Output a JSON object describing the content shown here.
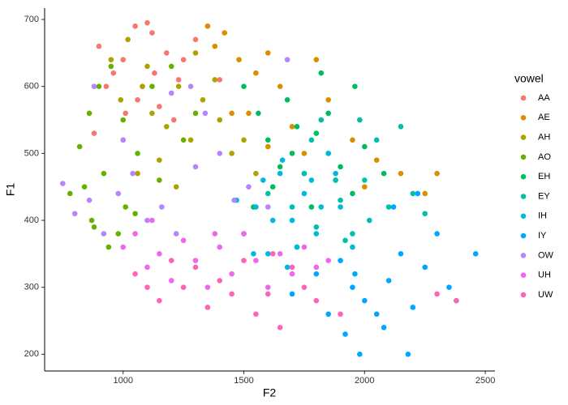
{
  "chart_data": {
    "type": "scatter",
    "x_label": "F2",
    "y_label": "F1",
    "legend_title": "vowel",
    "legend": "right",
    "xlim": [
      675,
      2540
    ],
    "ylim": [
      175,
      717
    ],
    "xticks": [
      1000,
      1500,
      2000,
      2500
    ],
    "yticks": [
      200,
      300,
      400,
      500,
      600,
      700
    ],
    "series": [
      {
        "name": "AA",
        "color": "#F8766D",
        "x": [
          1050,
          1100,
          1120,
          1000,
          960,
          900,
          1180,
          1230,
          1300,
          1080,
          1150,
          1010,
          1250,
          1350,
          930,
          1060,
          1210,
          880,
          1130,
          1400
        ],
        "values": [
          690,
          695,
          680,
          640,
          620,
          660,
          650,
          610,
          670,
          600,
          570,
          560,
          640,
          690,
          600,
          580,
          550,
          530,
          620,
          610
        ]
      },
      {
        "name": "AE",
        "color": "#DB8E00",
        "x": [
          1350,
          1420,
          1480,
          1550,
          1600,
          1650,
          1520,
          1700,
          1850,
          1950,
          2050,
          2150,
          2300,
          2250,
          1750,
          1600,
          1450,
          1380,
          2000,
          1800
        ],
        "values": [
          690,
          680,
          640,
          620,
          650,
          600,
          560,
          540,
          580,
          520,
          490,
          470,
          470,
          440,
          500,
          510,
          560,
          660,
          450,
          640
        ]
      },
      {
        "name": "AH",
        "color": "#AEA200",
        "x": [
          950,
          1020,
          1080,
          1120,
          1180,
          1230,
          1280,
          1330,
          1400,
          1450,
          1000,
          1060,
          1150,
          1300,
          1500,
          1550,
          1220,
          1100,
          990,
          1380
        ],
        "values": [
          640,
          670,
          600,
          560,
          540,
          600,
          520,
          580,
          550,
          500,
          520,
          470,
          490,
          650,
          520,
          470,
          450,
          630,
          580,
          610
        ]
      },
      {
        "name": "AO",
        "color": "#64B200",
        "x": [
          780,
          820,
          860,
          900,
          950,
          1000,
          1060,
          880,
          920,
          1010,
          1120,
          1200,
          980,
          840,
          1150,
          1250,
          1300,
          940,
          1050,
          870
        ],
        "values": [
          440,
          510,
          560,
          600,
          630,
          550,
          500,
          390,
          470,
          420,
          600,
          630,
          380,
          450,
          460,
          520,
          560,
          360,
          410,
          400
        ]
      },
      {
        "name": "EH",
        "color": "#00BD5C",
        "x": [
          1500,
          1560,
          1600,
          1650,
          1700,
          1750,
          1800,
          1850,
          1900,
          1950,
          2000,
          1680,
          1780,
          1620,
          1720,
          1880,
          1960,
          1540,
          1820,
          2080
        ],
        "values": [
          600,
          560,
          520,
          480,
          500,
          470,
          530,
          560,
          480,
          440,
          510,
          580,
          420,
          450,
          540,
          460,
          600,
          420,
          620,
          470
        ]
      },
      {
        "name": "EY",
        "color": "#00C1A7",
        "x": [
          1600,
          1700,
          1750,
          1800,
          1850,
          1900,
          1950,
          2000,
          2050,
          2100,
          2150,
          2200,
          1720,
          1820,
          1920,
          2020,
          1980,
          1880,
          2250,
          1780
        ],
        "values": [
          440,
          420,
          470,
          390,
          500,
          430,
          380,
          460,
          520,
          420,
          540,
          440,
          360,
          550,
          370,
          400,
          550,
          460,
          410,
          520
        ]
      },
      {
        "name": "IH",
        "color": "#00BADE",
        "x": [
          1500,
          1550,
          1600,
          1650,
          1700,
          1750,
          1800,
          1850,
          1900,
          1950,
          1580,
          1680,
          1780,
          1620,
          1720,
          1820,
          1470,
          1880,
          1540,
          1660
        ],
        "values": [
          380,
          420,
          350,
          470,
          400,
          440,
          380,
          500,
          420,
          360,
          460,
          330,
          460,
          400,
          360,
          420,
          430,
          470,
          350,
          490
        ]
      },
      {
        "name": "IY",
        "color": "#00A6FF",
        "x": [
          1700,
          1800,
          1850,
          1900,
          1950,
          2000,
          2050,
          2100,
          2150,
          2200,
          2250,
          2300,
          2350,
          2460,
          1980,
          2080,
          2180,
          1920,
          2120,
          2380,
          1960,
          2220
        ],
        "values": [
          290,
          320,
          260,
          340,
          300,
          280,
          260,
          310,
          350,
          270,
          330,
          380,
          300,
          350,
          200,
          240,
          200,
          230,
          420,
          280,
          320,
          440
        ]
      },
      {
        "name": "OW",
        "color": "#B385FF",
        "x": [
          750,
          800,
          860,
          920,
          980,
          1040,
          1100,
          1160,
          1220,
          1280,
          1340,
          1400,
          1460,
          1520,
          1600,
          1680,
          880,
          1000,
          1200,
          1300
        ],
        "values": [
          455,
          410,
          430,
          380,
          440,
          470,
          400,
          420,
          380,
          600,
          560,
          500,
          430,
          450,
          420,
          640,
          600,
          520,
          590,
          480
        ]
      },
      {
        "name": "UH",
        "color": "#EF67EB",
        "x": [
          1000,
          1050,
          1100,
          1150,
          1200,
          1250,
          1300,
          1350,
          1400,
          1450,
          1500,
          1550,
          1600,
          1650,
          1700,
          1750,
          1800,
          1850,
          1120,
          1380
        ],
        "values": [
          360,
          380,
          330,
          350,
          310,
          370,
          340,
          300,
          360,
          320,
          380,
          340,
          300,
          350,
          320,
          360,
          330,
          340,
          400,
          380
        ]
      },
      {
        "name": "UW",
        "color": "#FF63B6",
        "x": [
          1050,
          1100,
          1150,
          1200,
          1250,
          1300,
          1350,
          1400,
          1450,
          1500,
          1550,
          1600,
          1650,
          1700,
          1750,
          1800,
          1900,
          2300,
          2380,
          1620
        ],
        "values": [
          320,
          300,
          280,
          340,
          300,
          330,
          270,
          310,
          290,
          340,
          260,
          290,
          240,
          330,
          300,
          280,
          260,
          290,
          280,
          350
        ]
      }
    ]
  }
}
